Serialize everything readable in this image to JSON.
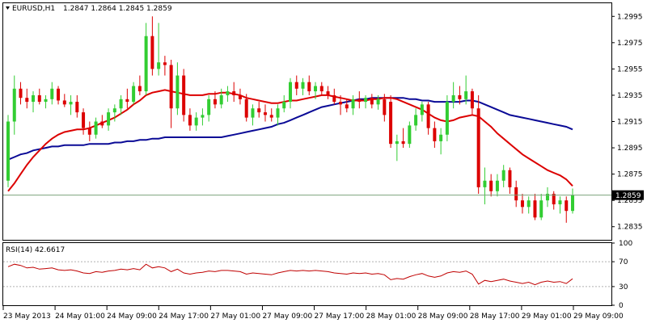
{
  "header": {
    "symbol": "EURUSD,H1",
    "ohlc": "1.2847 1.2864 1.2845 1.2859"
  },
  "rsi_header": {
    "label": "RSI(14) 42.6617"
  },
  "colors": {
    "bull": "#32CD32",
    "bear": "#DC0000",
    "ma_fast": "#DC0000",
    "ma_slow": "#0A0A96",
    "rsi": "#C00000",
    "price_line": "#7BA37B",
    "grid": "#B0B0B0",
    "frame": "#000000"
  },
  "chart_data": [
    {
      "type": "candlestick",
      "title": "",
      "ylim": [
        1.2825,
        1.3005
      ],
      "y_ticks": [
        "1.2995",
        "1.2975",
        "1.2955",
        "1.2935",
        "1.2915",
        "1.2895",
        "1.2875",
        "1.2855",
        "1.2835"
      ],
      "current_price": "1.2859",
      "x_tick_labels": [
        "23 May 2013",
        "24 May 01:00",
        "24 May 09:00",
        "24 May 17:00",
        "27 May 01:00",
        "27 May 09:00",
        "27 May 17:00",
        "28 May 01:00",
        "28 May 09:00",
        "28 May 17:00",
        "29 May 01:00",
        "29 May 09:00"
      ],
      "candles": [
        [
          1.287,
          1.292,
          1.2865,
          1.2915
        ],
        [
          1.2915,
          1.295,
          1.2905,
          1.294
        ],
        [
          1.294,
          1.2945,
          1.2928,
          1.2933
        ],
        [
          1.2933,
          1.294,
          1.2925,
          1.293
        ],
        [
          1.293,
          1.2938,
          1.2922,
          1.2935
        ],
        [
          1.2935,
          1.294,
          1.2928,
          1.293
        ],
        [
          1.293,
          1.2935,
          1.2925,
          1.2932
        ],
        [
          1.2932,
          1.2945,
          1.2928,
          1.294
        ],
        [
          1.294,
          1.2942,
          1.2928,
          1.2931
        ],
        [
          1.2931,
          1.2936,
          1.2926,
          1.2928
        ],
        [
          1.2928,
          1.2935,
          1.292,
          1.293
        ],
        [
          1.293,
          1.2935,
          1.2918,
          1.2922
        ],
        [
          1.2922,
          1.2925,
          1.2905,
          1.291
        ],
        [
          1.291,
          1.2915,
          1.29,
          1.2905
        ],
        [
          1.2905,
          1.2918,
          1.2902,
          1.2915
        ],
        [
          1.2915,
          1.292,
          1.291,
          1.2912
        ],
        [
          1.2912,
          1.2925,
          1.2908,
          1.2922
        ],
        [
          1.2922,
          1.2928,
          1.2915,
          1.2925
        ],
        [
          1.2925,
          1.2935,
          1.292,
          1.2932
        ],
        [
          1.2932,
          1.294,
          1.2925,
          1.293
        ],
        [
          1.293,
          1.2945,
          1.2928,
          1.2942
        ],
        [
          1.2942,
          1.295,
          1.2935,
          1.2938
        ],
        [
          1.2938,
          1.299,
          1.2935,
          1.298
        ],
        [
          1.298,
          1.2995,
          1.295,
          1.2955
        ],
        [
          1.2955,
          1.299,
          1.295,
          1.296
        ],
        [
          1.296,
          1.2965,
          1.295,
          1.2958
        ],
        [
          1.2958,
          1.2962,
          1.291,
          1.2925
        ],
        [
          1.2925,
          1.296,
          1.292,
          1.295
        ],
        [
          1.295,
          1.2955,
          1.2915,
          1.292
        ],
        [
          1.292,
          1.2925,
          1.2908,
          1.2912
        ],
        [
          1.2912,
          1.2922,
          1.2908,
          1.2918
        ],
        [
          1.2918,
          1.2925,
          1.2912,
          1.292
        ],
        [
          1.292,
          1.2935,
          1.2915,
          1.2932
        ],
        [
          1.2932,
          1.2938,
          1.2925,
          1.2928
        ],
        [
          1.2928,
          1.294,
          1.2925,
          1.2935
        ],
        [
          1.2935,
          1.2942,
          1.293,
          1.2938
        ],
        [
          1.2938,
          1.2945,
          1.293,
          1.2935
        ],
        [
          1.2935,
          1.294,
          1.2928,
          1.2932
        ],
        [
          1.2932,
          1.2936,
          1.2915,
          1.2918
        ],
        [
          1.2918,
          1.2928,
          1.2912,
          1.2925
        ],
        [
          1.2925,
          1.293,
          1.2918,
          1.2922
        ],
        [
          1.2922,
          1.2928,
          1.2915,
          1.292
        ],
        [
          1.292,
          1.2925,
          1.2915,
          1.2918
        ],
        [
          1.2918,
          1.2928,
          1.2912,
          1.2925
        ],
        [
          1.2925,
          1.2935,
          1.2922,
          1.293
        ],
        [
          1.293,
          1.2948,
          1.2925,
          1.2945
        ],
        [
          1.2945,
          1.295,
          1.2935,
          1.294
        ],
        [
          1.294,
          1.2948,
          1.2935,
          1.2945
        ],
        [
          1.2945,
          1.295,
          1.2935,
          1.2938
        ],
        [
          1.2938,
          1.2945,
          1.2932,
          1.2942
        ],
        [
          1.2942,
          1.2945,
          1.2935,
          1.2938
        ],
        [
          1.2938,
          1.2942,
          1.2932,
          1.2935
        ],
        [
          1.2935,
          1.294,
          1.2928,
          1.293
        ],
        [
          1.293,
          1.2935,
          1.292,
          1.2928
        ],
        [
          1.2928,
          1.2932,
          1.2922,
          1.2925
        ],
        [
          1.2925,
          1.2935,
          1.292,
          1.2932
        ],
        [
          1.2932,
          1.2938,
          1.2925,
          1.293
        ],
        [
          1.293,
          1.2935,
          1.2925,
          1.2933
        ],
        [
          1.2933,
          1.2936,
          1.2925,
          1.2928
        ],
        [
          1.2928,
          1.2935,
          1.2924,
          1.2932
        ],
        [
          1.2932,
          1.2936,
          1.2915,
          1.292
        ],
        [
          1.293,
          1.2935,
          1.2895,
          1.2898
        ],
        [
          1.2898,
          1.2905,
          1.2885,
          1.29
        ],
        [
          1.29,
          1.291,
          1.2895,
          1.2898
        ],
        [
          1.2898,
          1.2915,
          1.2895,
          1.2912
        ],
        [
          1.2912,
          1.2925,
          1.2908,
          1.292
        ],
        [
          1.292,
          1.293,
          1.2915,
          1.2928
        ],
        [
          1.2928,
          1.293,
          1.2905,
          1.291
        ],
        [
          1.291,
          1.2915,
          1.2895,
          1.29
        ],
        [
          1.29,
          1.291,
          1.289,
          1.2905
        ],
        [
          1.2905,
          1.2935,
          1.29,
          1.293
        ],
        [
          1.293,
          1.2945,
          1.2925,
          1.2935
        ],
        [
          1.2935,
          1.2942,
          1.2928,
          1.2932
        ],
        [
          1.2932,
          1.295,
          1.2928,
          1.2938
        ],
        [
          1.2938,
          1.294,
          1.292,
          1.2925
        ],
        [
          1.2925,
          1.2935,
          1.286,
          1.2865
        ],
        [
          1.2865,
          1.288,
          1.2852,
          1.287
        ],
        [
          1.287,
          1.2875,
          1.2858,
          1.2862
        ],
        [
          1.2862,
          1.2875,
          1.2858,
          1.287
        ],
        [
          1.287,
          1.2882,
          1.2865,
          1.2878
        ],
        [
          1.2878,
          1.288,
          1.286,
          1.2865
        ],
        [
          1.2865,
          1.287,
          1.285,
          1.2855
        ],
        [
          1.2855,
          1.286,
          1.2845,
          1.285
        ],
        [
          1.285,
          1.2858,
          1.2845,
          1.2855
        ],
        [
          1.2855,
          1.286,
          1.284,
          1.2842
        ],
        [
          1.2842,
          1.286,
          1.284,
          1.2855
        ],
        [
          1.2855,
          1.2865,
          1.285,
          1.286
        ],
        [
          1.286,
          1.2862,
          1.2848,
          1.2852
        ],
        [
          1.2852,
          1.2858,
          1.2845,
          1.2855
        ],
        [
          1.2855,
          1.2858,
          1.2838,
          1.2847
        ],
        [
          1.2847,
          1.2864,
          1.2845,
          1.2859
        ]
      ],
      "ma_fast": [
        1.2862,
        1.2868,
        1.2875,
        1.2882,
        1.2888,
        1.2893,
        1.2898,
        1.2902,
        1.2905,
        1.2907,
        1.2908,
        1.2909,
        1.2909,
        1.291,
        1.2912,
        1.2914,
        1.2916,
        1.2918,
        1.2921,
        1.2924,
        1.2928,
        1.2931,
        1.2935,
        1.2937,
        1.2938,
        1.2939,
        1.2938,
        1.2937,
        1.2936,
        1.2935,
        1.2935,
        1.2935,
        1.2936,
        1.2936,
        1.2937,
        1.2937,
        1.2936,
        1.2935,
        1.2933,
        1.2932,
        1.2931,
        1.293,
        1.2929,
        1.2929,
        1.293,
        1.2931,
        1.2931,
        1.2932,
        1.2933,
        1.2934,
        1.2935,
        1.2935,
        1.2934,
        1.2933,
        1.2932,
        1.2931,
        1.2931,
        1.2931,
        1.2932,
        1.2932,
        1.2933,
        1.2933,
        1.2932,
        1.293,
        1.2928,
        1.2926,
        1.2924,
        1.2921,
        1.2918,
        1.2916,
        1.2915,
        1.2916,
        1.2918,
        1.2919,
        1.292,
        1.2919,
        1.2915,
        1.2911,
        1.2906,
        1.2902,
        1.2898,
        1.2894,
        1.289,
        1.2887,
        1.2884,
        1.2881,
        1.2878,
        1.2876,
        1.2874,
        1.2871,
        1.2866
      ],
      "ma_slow": [
        1.2886,
        1.2888,
        1.289,
        1.2891,
        1.2893,
        1.2894,
        1.2895,
        1.2896,
        1.2896,
        1.2897,
        1.2897,
        1.2897,
        1.2897,
        1.2898,
        1.2898,
        1.2898,
        1.2898,
        1.2899,
        1.2899,
        1.29,
        1.29,
        1.2901,
        1.2901,
        1.2902,
        1.2902,
        1.2903,
        1.2903,
        1.2903,
        1.2903,
        1.2903,
        1.2903,
        1.2903,
        1.2903,
        1.2903,
        1.2903,
        1.2904,
        1.2905,
        1.2906,
        1.2907,
        1.2908,
        1.2909,
        1.291,
        1.2911,
        1.2913,
        1.2914,
        1.2916,
        1.2918,
        1.292,
        1.2922,
        1.2924,
        1.2926,
        1.2927,
        1.2928,
        1.2929,
        1.293,
        1.2931,
        1.2932,
        1.2932,
        1.2933,
        1.2933,
        1.2933,
        1.2933,
        1.2933,
        1.2933,
        1.2932,
        1.2932,
        1.2931,
        1.2931,
        1.293,
        1.293,
        1.293,
        1.293,
        1.293,
        1.2931,
        1.2931,
        1.293,
        1.2928,
        1.2926,
        1.2924,
        1.2922,
        1.292,
        1.2919,
        1.2918,
        1.2917,
        1.2916,
        1.2915,
        1.2914,
        1.2913,
        1.2912,
        1.2911,
        1.2909
      ]
    },
    {
      "type": "line",
      "title": "",
      "ylim": [
        0,
        100
      ],
      "y_ticks": [
        "100",
        "70",
        "30",
        "0"
      ],
      "levels": [
        70,
        30
      ],
      "rsi": [
        62,
        66,
        64,
        60,
        61,
        58,
        59,
        60,
        57,
        56,
        57,
        55,
        52,
        51,
        54,
        53,
        55,
        56,
        58,
        57,
        59,
        57,
        66,
        60,
        62,
        60,
        54,
        58,
        52,
        50,
        52,
        53,
        55,
        54,
        56,
        56,
        55,
        54,
        50,
        52,
        51,
        50,
        49,
        52,
        54,
        56,
        55,
        56,
        55,
        56,
        55,
        54,
        52,
        51,
        50,
        52,
        51,
        52,
        50,
        51,
        49,
        41,
        43,
        42,
        46,
        49,
        51,
        47,
        45,
        47,
        52,
        54,
        53,
        55,
        50,
        34,
        40,
        38,
        40,
        42,
        39,
        37,
        35,
        37,
        33,
        37,
        39,
        37,
        38,
        35,
        42.6617
      ]
    }
  ]
}
